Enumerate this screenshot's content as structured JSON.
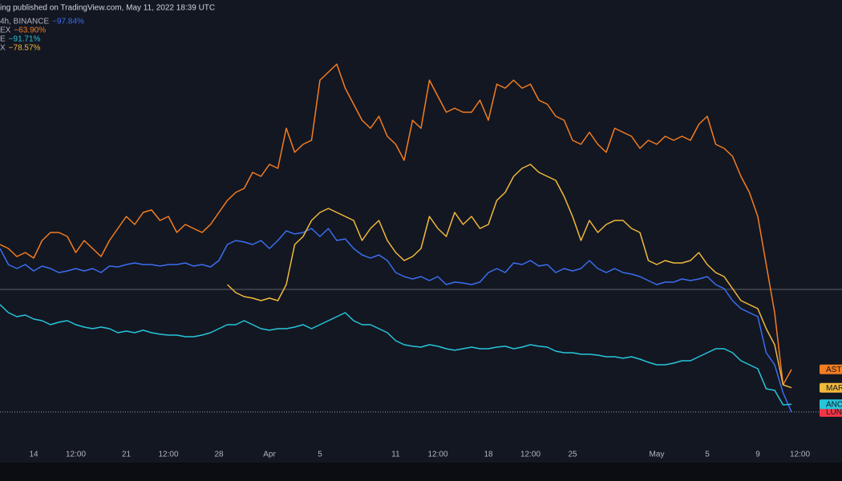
{
  "chart_data": {
    "type": "line",
    "title": "ing published on TradingView.com, May 11, 2022 18:39 UTC",
    "categories": [
      null,
      null,
      null,
      null,
      "14",
      null,
      null,
      null,
      null,
      "12:00",
      null,
      null,
      null,
      null,
      null,
      "21",
      null,
      null,
      null,
      null,
      "12:00",
      null,
      null,
      null,
      null,
      null,
      "28",
      null,
      null,
      null,
      null,
      null,
      "Apr",
      null,
      null,
      null,
      null,
      null,
      "5",
      null,
      null,
      null,
      null,
      null,
      null,
      null,
      null,
      "11",
      null,
      null,
      null,
      null,
      "12:00",
      null,
      null,
      null,
      null,
      null,
      "18",
      null,
      null,
      null,
      null,
      "12:00",
      null,
      null,
      null,
      null,
      "25",
      null,
      null,
      null,
      null,
      null,
      null,
      null,
      null,
      null,
      "May",
      null,
      null,
      null,
      null,
      null,
      "5",
      null,
      null,
      null,
      null,
      null,
      "9",
      null,
      null,
      null,
      null,
      "12:00",
      null,
      null,
      null,
      null
    ],
    "ylim": [
      -124.2,
      218.2
    ],
    "series": [
      {
        "name": "LUNA",
        "color": "#3a6ef0",
        "label_color": "#f23645",
        "legend_text": "4h, BINANCE",
        "change": {
          "value": -97.84,
          "label": "−97.84%"
        },
        "values": [
          32.6,
          19.8,
          16.6,
          19.8,
          14.7,
          18.6,
          16.6,
          13.4,
          14.7,
          16.6,
          14.7,
          16.6,
          13.4,
          18.6,
          17.9,
          19.8,
          21.1,
          19.8,
          19.8,
          18.6,
          19.8,
          19.8,
          21.1,
          18.6,
          19.8,
          17.9,
          23.0,
          35.8,
          39.0,
          37.8,
          35.8,
          39.0,
          32.6,
          39.0,
          46.7,
          44.2,
          45.4,
          48.6,
          42.2,
          48.6,
          39.0,
          40.3,
          32.6,
          27.5,
          25.0,
          27.5,
          23.0,
          13.4,
          10.2,
          8.3,
          10.2,
          7.0,
          10.2,
          3.8,
          5.8,
          5.1,
          3.8,
          5.8,
          13.4,
          16.6,
          13.4,
          21.1,
          19.8,
          23.0,
          18.6,
          19.8,
          13.4,
          16.6,
          14.7,
          16.6,
          23.0,
          16.6,
          13.4,
          16.6,
          13.4,
          12.2,
          10.2,
          7.0,
          3.8,
          5.8,
          5.8,
          8.3,
          7.0,
          8.3,
          10.2,
          3.8,
          0.6,
          -9.0,
          -15.4,
          -18.6,
          -21.8,
          -50.6,
          -60.2,
          -82.6,
          -97.84,
          null,
          null,
          null,
          null,
          null
        ]
      },
      {
        "name": "ASTRO",
        "color": "#f57d1f",
        "label_color": "#f57d1f",
        "legend_text": "EX",
        "change": {
          "value": -63.9,
          "label": "−63.90%"
        },
        "values": [
          35.8,
          32.6,
          26.2,
          29.4,
          25.0,
          39.0,
          45.4,
          45.4,
          42.2,
          29.4,
          39.0,
          32.6,
          26.2,
          39.0,
          48.6,
          58.2,
          51.8,
          61.4,
          63.4,
          55.0,
          58.2,
          45.4,
          51.8,
          48.6,
          45.4,
          51.8,
          61.4,
          71.0,
          77.4,
          80.6,
          93.4,
          90.2,
          99.8,
          96.6,
          128.6,
          109.4,
          115.8,
          119.0,
          167.0,
          173.4,
          179.8,
          160.6,
          147.8,
          135.0,
          128.6,
          138.2,
          122.2,
          115.8,
          103.0,
          135.0,
          128.6,
          167.0,
          154.2,
          141.4,
          144.6,
          141.4,
          141.4,
          151.0,
          135.0,
          163.8,
          160.6,
          167.0,
          160.6,
          163.8,
          151.0,
          147.8,
          138.2,
          135.0,
          119.0,
          115.8,
          125.4,
          115.8,
          109.4,
          128.6,
          125.4,
          122.2,
          112.6,
          119.0,
          115.8,
          122.2,
          119.0,
          122.2,
          119.0,
          131.8,
          138.2,
          115.8,
          112.6,
          106.2,
          90.2,
          77.4,
          58.2,
          19.8,
          -18.6,
          -76.2,
          -63.9,
          null,
          null,
          null,
          null,
          null
        ]
      },
      {
        "name": "ANC",
        "color": "#26c6da",
        "label_color": "#26c6da",
        "legend_text": "E",
        "change": {
          "value": -91.71,
          "label": "−91.71%"
        },
        "values": [
          -12.2,
          -18.6,
          -21.8,
          -20.5,
          -23.7,
          -25.0,
          -28.2,
          -26.2,
          -25.0,
          -28.2,
          -30.1,
          -31.4,
          -30.1,
          -31.4,
          -34.6,
          -33.3,
          -34.6,
          -32.6,
          -34.6,
          -35.8,
          -36.5,
          -36.5,
          -37.8,
          -37.8,
          -36.5,
          -34.6,
          -31.4,
          -28.2,
          -28.2,
          -25.0,
          -28.2,
          -31.4,
          -32.6,
          -31.4,
          -31.4,
          -30.1,
          -28.2,
          -31.4,
          -28.2,
          -25.0,
          -21.8,
          -18.6,
          -25.0,
          -28.2,
          -28.2,
          -31.4,
          -34.6,
          -41.0,
          -44.2,
          -45.4,
          -46.1,
          -44.2,
          -45.4,
          -47.4,
          -48.6,
          -47.4,
          -46.1,
          -47.4,
          -47.4,
          -46.1,
          -45.4,
          -47.4,
          -46.1,
          -44.2,
          -45.4,
          -46.1,
          -49.3,
          -50.6,
          -50.6,
          -51.8,
          -51.8,
          -52.5,
          -53.8,
          -53.8,
          -55.0,
          -53.8,
          -55.7,
          -58.2,
          -60.2,
          -60.2,
          -58.9,
          -57.0,
          -57.0,
          -53.8,
          -50.6,
          -47.4,
          -47.4,
          -50.6,
          -57.0,
          -60.2,
          -63.4,
          -79.4,
          -80.6,
          -92.2,
          -91.71,
          null,
          null,
          null,
          null,
          null
        ]
      },
      {
        "name": "MARS",
        "color": "#f2b93b",
        "label_color": "#f2b93b",
        "legend_text": "X",
        "change": {
          "value": -78.57,
          "label": "−78.57%"
        },
        "values": [
          null,
          null,
          null,
          null,
          null,
          null,
          null,
          null,
          null,
          null,
          null,
          null,
          null,
          null,
          null,
          null,
          null,
          null,
          null,
          null,
          null,
          null,
          null,
          null,
          null,
          null,
          null,
          3.8,
          -2.6,
          -5.8,
          -7.0,
          -9.0,
          -7.0,
          -9.0,
          3.8,
          35.8,
          42.2,
          55.0,
          61.4,
          64.6,
          61.4,
          58.2,
          55.0,
          39.0,
          48.6,
          55.0,
          39.0,
          29.4,
          23.0,
          26.2,
          32.6,
          58.2,
          48.6,
          42.2,
          61.4,
          51.8,
          58.2,
          48.6,
          51.8,
          71.0,
          77.4,
          90.2,
          96.6,
          99.8,
          93.4,
          90.2,
          87.0,
          74.2,
          58.2,
          39.0,
          55.0,
          45.4,
          51.8,
          55.0,
          55.0,
          48.6,
          45.4,
          23.0,
          19.8,
          23.0,
          21.1,
          21.1,
          23.0,
          29.4,
          19.8,
          13.4,
          10.2,
          0.6,
          -9.0,
          -12.2,
          -15.4,
          -31.4,
          -44.2,
          -76.2,
          -78.57,
          null,
          null,
          null,
          null,
          null
        ]
      }
    ]
  }
}
